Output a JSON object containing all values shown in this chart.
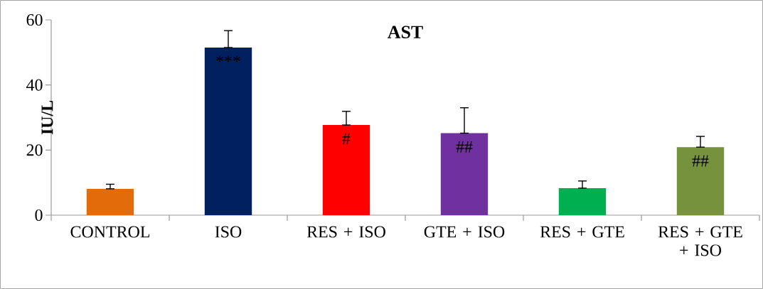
{
  "chart_data": {
    "type": "bar",
    "title": "AST",
    "ylabel": "IU/L",
    "categories": [
      "CONTROL",
      "ISO",
      "RES + ISO",
      "GTE + ISO",
      "RES + GTE",
      "RES + GTE + ISO"
    ],
    "values": [
      8.1,
      51.5,
      27.7,
      25.2,
      8.3,
      20.9
    ],
    "colors": [
      "#e36c0a",
      "#002060",
      "#ff0000",
      "#7030a0",
      "#00b050",
      "#76923c"
    ],
    "errors": [
      [
        8.1,
        9.5
      ],
      [
        51.5,
        56.7
      ],
      [
        27.7,
        31.9
      ],
      [
        25.2,
        33.0
      ],
      [
        8.3,
        10.5
      ],
      [
        20.9,
        24.2
      ]
    ],
    "ylim": [
      0,
      60
    ],
    "yticks": [
      0,
      20,
      40,
      60
    ],
    "grid": false,
    "annotations": [
      {
        "text": "***",
        "x": "ISO",
        "y": 51.5
      },
      {
        "text": "#",
        "x": "RES + ISO",
        "y": 27.7
      },
      {
        "text": "##",
        "x": "GTE + ISO",
        "y": 25.2
      },
      {
        "text": "##",
        "x": "RES + GTE + ISO",
        "y": 20.9
      }
    ]
  }
}
